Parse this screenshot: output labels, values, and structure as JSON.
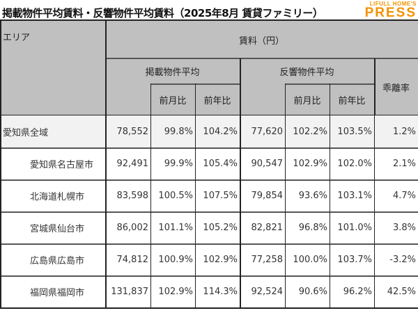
{
  "title": "掲載物件平均賃料・反響物件平均賃料（2025年8月 賃貸ファミリー）",
  "logo": {
    "line1": "LIFULL HOME'S",
    "line2": "PRESS"
  },
  "header": {
    "area": "エリア",
    "rent": "賃料（円）",
    "listed": "掲載物件平均",
    "response": "反響物件平均",
    "mom": "前月比",
    "yoy": "前年比",
    "gap": "乖離率"
  },
  "rows": [
    {
      "area": "愛知県全域",
      "v": [
        "78,552",
        "99.8%",
        "104.2%",
        "77,620",
        "102.2%",
        "103.5%",
        "1.2%"
      ]
    },
    {
      "area": "愛知県名古屋市",
      "v": [
        "92,491",
        "99.9%",
        "105.4%",
        "90,547",
        "102.9%",
        "102.0%",
        "2.1%"
      ]
    },
    {
      "area": "北海道札幌市",
      "v": [
        "83,598",
        "100.5%",
        "107.5%",
        "79,854",
        "93.6%",
        "103.1%",
        "4.7%"
      ]
    },
    {
      "area": "宮城県仙台市",
      "v": [
        "86,002",
        "101.1%",
        "105.2%",
        "82,821",
        "96.8%",
        "101.0%",
        "3.8%"
      ]
    },
    {
      "area": "広島県広島市",
      "v": [
        "74,812",
        "100.9%",
        "102.9%",
        "77,258",
        "100.0%",
        "103.7%",
        "-3.2%"
      ]
    },
    {
      "area": "福岡県福岡市",
      "v": [
        "131,837",
        "102.9%",
        "114.3%",
        "92,524",
        "90.6%",
        "96.2%",
        "42.5%"
      ]
    }
  ],
  "colors": {
    "header_bg": "#c0c0c0",
    "first_row_bg": "#f2f2f2",
    "logo": "#f39200"
  }
}
